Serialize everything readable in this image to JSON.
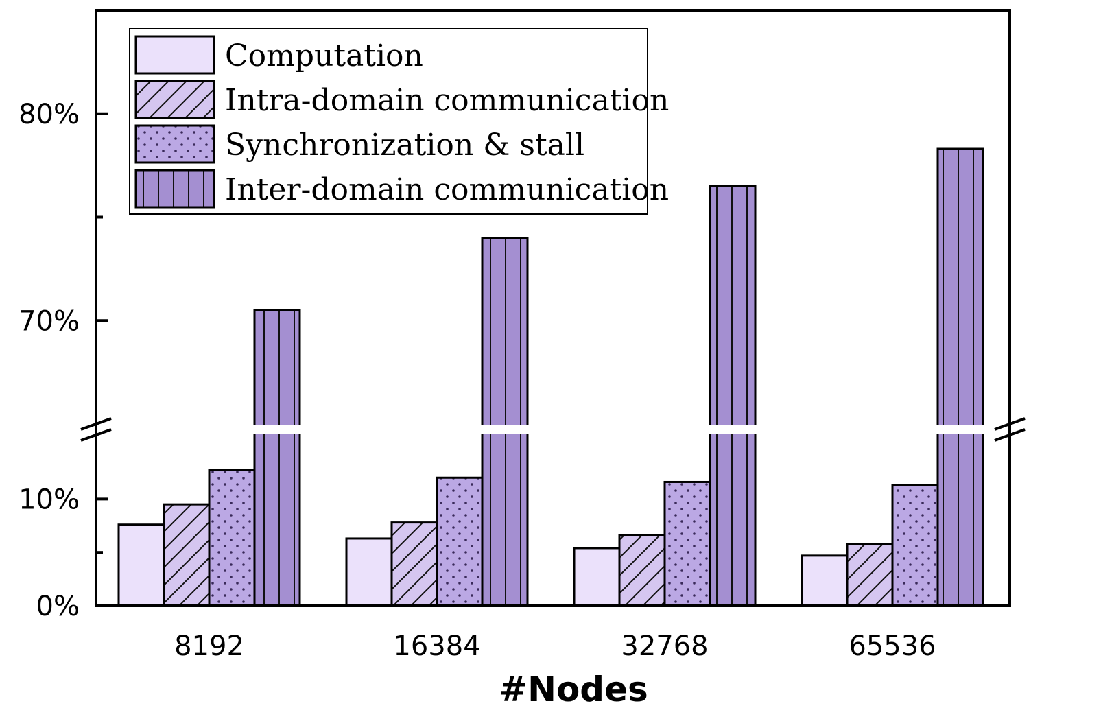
{
  "chart_data": {
    "type": "bar",
    "title": "",
    "xlabel": "#Nodes",
    "ylabel": "",
    "categories": [
      "8192",
      "16384",
      "32768",
      "65536"
    ],
    "series": [
      {
        "name": "Computation",
        "pattern": "none",
        "color": "#ebe1fb",
        "values": [
          7.6,
          6.3,
          5.4,
          4.7
        ]
      },
      {
        "name": "Intra-domain communication",
        "pattern": "diagonal",
        "color": "#d5c6f0",
        "values": [
          9.5,
          7.8,
          6.6,
          5.8
        ]
      },
      {
        "name": "Synchronization & stall",
        "pattern": "dots",
        "color": "#bba8e4",
        "values": [
          12.7,
          12.0,
          11.6,
          11.3
        ]
      },
      {
        "name": "Inter-domain communication",
        "pattern": "vertical",
        "color": "#a48fd1",
        "values": [
          70.5,
          74.0,
          76.5,
          78.3
        ]
      }
    ],
    "axis_break": {
      "lower_range": [
        0,
        16
      ],
      "upper_range": [
        65,
        85
      ]
    },
    "y_ticks": [
      {
        "value": 0,
        "label": "0%"
      },
      {
        "value": 10,
        "label": "10%"
      },
      {
        "value": 70,
        "label": "70%"
      },
      {
        "value": 80,
        "label": "80%"
      }
    ],
    "y_minor_ticks": [
      5,
      75
    ],
    "legend_position": "top-left",
    "grid": false
  }
}
